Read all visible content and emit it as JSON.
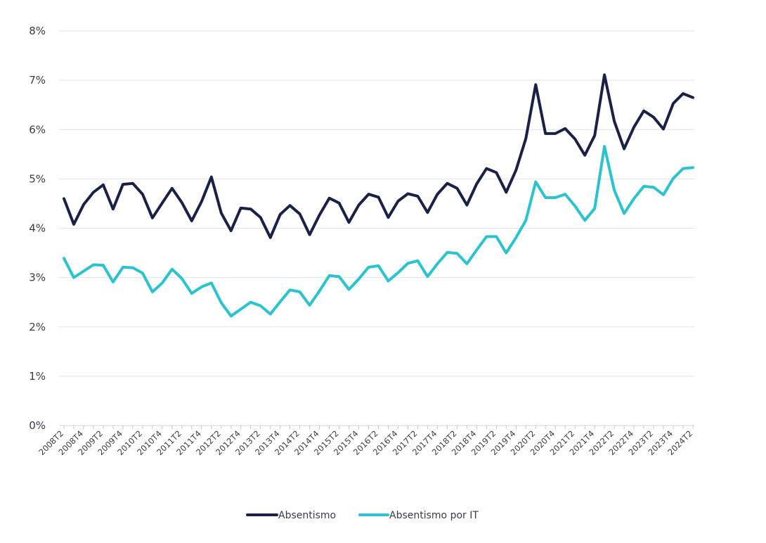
{
  "chart_data": {
    "type": "line",
    "title": "",
    "xlabel": "",
    "ylabel": "",
    "ylim": [
      0,
      8
    ],
    "y_ticks": [
      "0%",
      "1%",
      "2%",
      "3%",
      "4%",
      "5%",
      "6%",
      "7%",
      "8%"
    ],
    "grid": "horizontal",
    "legend_position": "bottom",
    "x": [
      "2008T2",
      "2008T3",
      "2008T4",
      "2009T1",
      "2009T2",
      "2009T3",
      "2009T4",
      "2010T1",
      "2010T2",
      "2010T3",
      "2010T4",
      "2011T1",
      "2011T2",
      "2011T3",
      "2011T4",
      "2012T1",
      "2012T2",
      "2012T3",
      "2012T4",
      "2013T1",
      "2013T2",
      "2013T3",
      "2013T4",
      "2014T1",
      "2014T2",
      "2014T3",
      "2014T4",
      "2015T1",
      "2015T2",
      "2015T3",
      "2015T4",
      "2016T1",
      "2016T2",
      "2016T3",
      "2016T4",
      "2017T1",
      "2017T2",
      "2017T3",
      "2017T4",
      "2018T1",
      "2018T2",
      "2018T3",
      "2018T4",
      "2019T1",
      "2019T2",
      "2019T3",
      "2019T4",
      "2020T1",
      "2020T2",
      "2020T3",
      "2020T4",
      "2021T1",
      "2021T2",
      "2021T3",
      "2021T4",
      "2022T1",
      "2022T2",
      "2022T3",
      "2022T4",
      "2023T1",
      "2023T2",
      "2023T3",
      "2023T4",
      "2024T1",
      "2024T2"
    ],
    "x_tick_labels": [
      "2008T2",
      "2008T4",
      "2009T2",
      "2009T4",
      "2010T2",
      "2010T4",
      "2011T2",
      "2011T4",
      "2012T2",
      "2012T4",
      "2013T2",
      "2013T4",
      "2014T2",
      "2014T4",
      "2015T2",
      "2015T4",
      "2016T2",
      "2016T4",
      "2017T2",
      "2017T4",
      "2018T2",
      "2018T4",
      "2019T2",
      "2019T4",
      "2020T2",
      "2020T4",
      "2021T2",
      "2021T4",
      "2022T2",
      "2022T4",
      "2023T2",
      "2023T4",
      "2024T2"
    ],
    "series": [
      {
        "name": "Absentismo",
        "color": "#1a2146",
        "values": [
          4.6,
          4.08,
          4.48,
          4.73,
          4.88,
          4.39,
          4.89,
          4.91,
          4.69,
          4.21,
          4.51,
          4.81,
          4.52,
          4.15,
          4.54,
          5.04,
          4.31,
          3.95,
          4.41,
          4.39,
          4.22,
          3.81,
          4.28,
          4.46,
          4.29,
          3.87,
          4.27,
          4.61,
          4.51,
          4.12,
          4.47,
          4.69,
          4.63,
          4.22,
          4.55,
          4.7,
          4.65,
          4.32,
          4.69,
          4.91,
          4.81,
          4.47,
          4.9,
          5.21,
          5.13,
          4.73,
          5.18,
          5.82,
          6.91,
          5.92,
          5.92,
          6.02,
          5.81,
          5.48,
          5.88,
          7.11,
          6.17,
          5.61,
          6.05,
          6.38,
          6.25,
          6.01,
          6.53,
          6.73,
          6.65
        ]
      },
      {
        "name": "Absentismo por IT",
        "color": "#2bc3cf",
        "values": [
          3.39,
          3.0,
          3.13,
          3.26,
          3.25,
          2.91,
          3.21,
          3.2,
          3.09,
          2.71,
          2.89,
          3.17,
          2.98,
          2.68,
          2.81,
          2.89,
          2.49,
          2.22,
          2.36,
          2.5,
          2.43,
          2.26,
          2.51,
          2.75,
          2.71,
          2.44,
          2.73,
          3.04,
          3.02,
          2.76,
          2.97,
          3.21,
          3.24,
          2.93,
          3.1,
          3.29,
          3.34,
          3.02,
          3.28,
          3.51,
          3.49,
          3.28,
          3.56,
          3.83,
          3.83,
          3.5,
          3.81,
          4.16,
          4.94,
          4.62,
          4.62,
          4.69,
          4.45,
          4.16,
          4.4,
          5.66,
          4.77,
          4.3,
          4.6,
          4.85,
          4.83,
          4.68,
          5.01,
          5.21,
          5.23
        ]
      }
    ]
  }
}
